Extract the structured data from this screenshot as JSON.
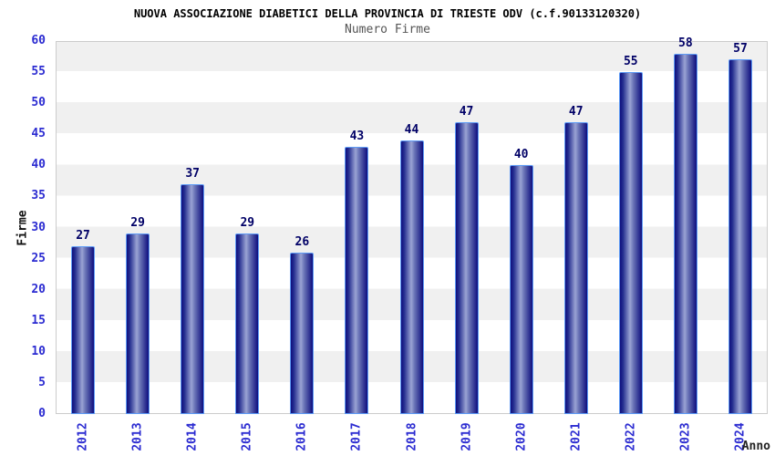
{
  "chart_data": {
    "type": "bar",
    "title": "NUOVA ASSOCIAZIONE DIABETICI DELLA PROVINCIA DI TRIESTE ODV (c.f.90133120320)",
    "subtitle": "Numero Firme",
    "xlabel": "Anno",
    "ylabel": "Firme",
    "categories": [
      "2012",
      "2013",
      "2014",
      "2015",
      "2016",
      "2017",
      "2018",
      "2019",
      "2020",
      "2021",
      "2022",
      "2023",
      "2024"
    ],
    "values": [
      27,
      29,
      37,
      29,
      26,
      43,
      44,
      47,
      40,
      47,
      55,
      58,
      57
    ],
    "ylim": [
      0,
      60
    ],
    "ytick_step": 5,
    "grid": "alternating-horizontal-bands",
    "legend": "none",
    "colors": {
      "bar_dark": "#0e0e7e",
      "bar_light": "#9aa3d4",
      "bar_border": "#5e9bf5",
      "axis_tick_label": "#2b2bd1",
      "value_label": "#000066",
      "subtitle_text": "#555555",
      "band_gray": "#f0f0f0",
      "band_white": "#ffffff",
      "plot_border": "#cccccc",
      "background": "#ffffff"
    }
  }
}
